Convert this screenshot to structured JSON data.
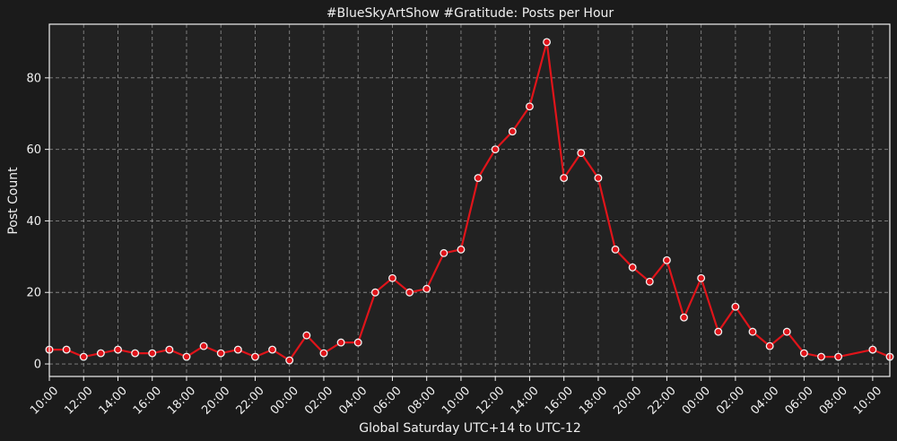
{
  "chart_data": {
    "type": "line",
    "title": "#BlueSkyArtShow #Gratitude: Posts per Hour",
    "xlabel": "Global Saturday UTC+14 to UTC-12",
    "ylabel": "Post Count",
    "ylim": [
      -3.5,
      95
    ],
    "yticks": [
      0,
      20,
      40,
      60,
      80
    ],
    "xlim": [
      0,
      49
    ],
    "xtick_positions": [
      0,
      2,
      4,
      6,
      8,
      10,
      12,
      14,
      16,
      18,
      20,
      22,
      24,
      26,
      28,
      30,
      32,
      34,
      36,
      38,
      40,
      42,
      44,
      46,
      48
    ],
    "xtick_labels": [
      "10:00",
      "12:00",
      "14:00",
      "16:00",
      "18:00",
      "20:00",
      "22:00",
      "00:00",
      "02:00",
      "04:00",
      "06:00",
      "08:00",
      "10:00",
      "12:00",
      "14:00",
      "16:00",
      "18:00",
      "20:00",
      "22:00",
      "00:00",
      "02:00",
      "04:00",
      "06:00",
      "08:00",
      "10:00"
    ],
    "grid": true,
    "line_color": "#e0141a",
    "marker_edge_color": "#f2f2f2",
    "background": "#222222",
    "series": [
      {
        "x": [
          0,
          1,
          2,
          3,
          4,
          5,
          6,
          7,
          8,
          9,
          10,
          11,
          12,
          13,
          14,
          15,
          16,
          17,
          18,
          19,
          20,
          21,
          22,
          23,
          24,
          25,
          26,
          27,
          28,
          29,
          30,
          31,
          32,
          33,
          34,
          35,
          36,
          37,
          38,
          39,
          40,
          41,
          42,
          43,
          44,
          45,
          46,
          48,
          49
        ],
        "values": [
          4,
          4,
          2,
          3,
          4,
          3,
          3,
          4,
          2,
          5,
          3,
          4,
          2,
          4,
          1,
          8,
          3,
          6,
          6,
          20,
          24,
          20,
          21,
          31,
          32,
          52,
          60,
          65,
          72,
          90,
          52,
          59,
          52,
          32,
          27,
          23,
          29,
          13,
          24,
          9,
          16,
          9,
          5,
          9,
          3,
          2,
          2,
          4,
          2
        ]
      }
    ]
  }
}
